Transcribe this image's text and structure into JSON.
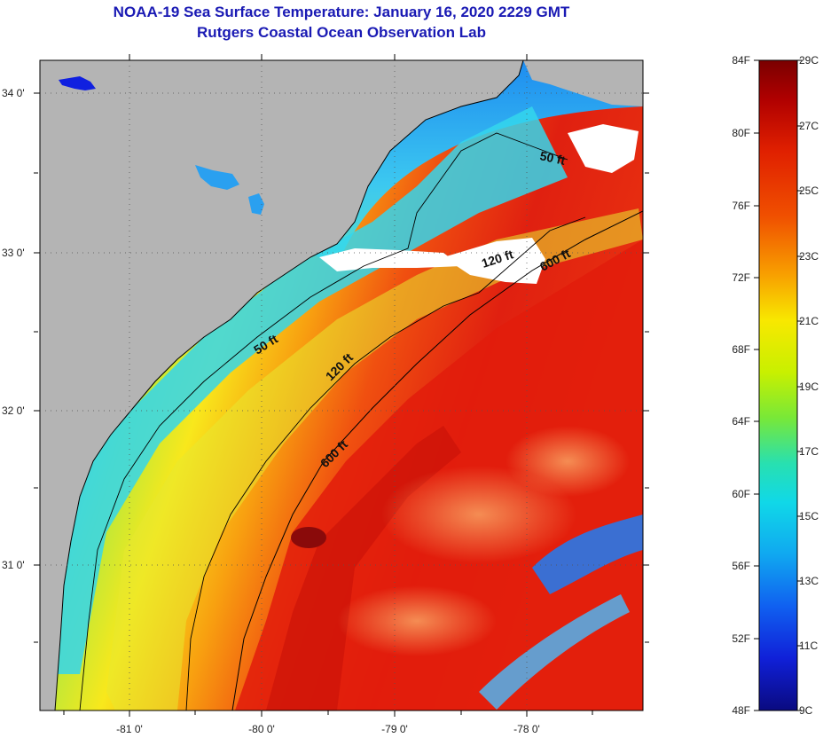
{
  "title": {
    "line1": "NOAA-19 Sea Surface Temperature:  January 16, 2020 2229 GMT",
    "line2": "Rutgers Coastal Ocean Observation Lab"
  },
  "map": {
    "lat_ticks": [
      "34 0'",
      "33 0'",
      "32 0'",
      "31 0'"
    ],
    "lon_ticks": [
      "-81 0'",
      "-80 0'",
      "-79 0'",
      "-78 0'"
    ],
    "contours": [
      {
        "label": "50 ft"
      },
      {
        "label": "50 ft"
      },
      {
        "label": "120 ft"
      },
      {
        "label": "120 ft"
      },
      {
        "label": "600 ft"
      },
      {
        "label": "600 ft"
      }
    ],
    "colors": {
      "land": "#b4b4b4",
      "cloud": "#ffffff",
      "coast_line": "#000000"
    }
  },
  "colorbar": {
    "fahrenheit": [
      "84F",
      "80F",
      "76F",
      "72F",
      "68F",
      "64F",
      "60F",
      "56F",
      "52F",
      "48F"
    ],
    "celsius": [
      "29C",
      "27C",
      "25C",
      "23C",
      "21C",
      "19C",
      "17C",
      "15C",
      "13C",
      "11C",
      "9C"
    ]
  }
}
